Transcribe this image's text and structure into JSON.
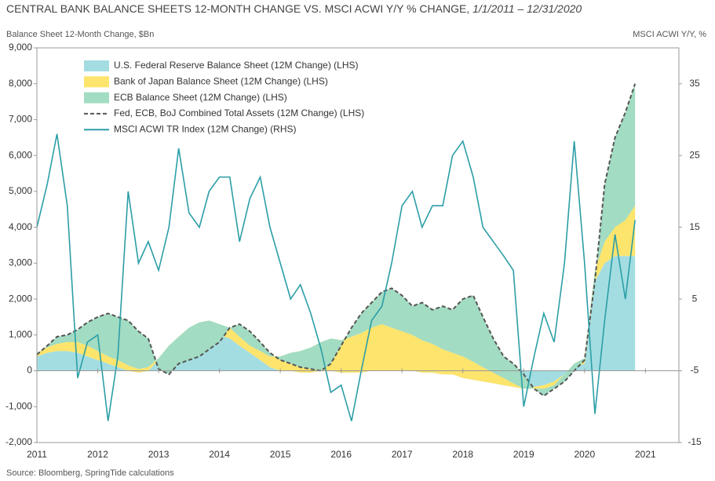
{
  "chart_data": {
    "type": "combo",
    "title": "CENTRAL BANK BALANCE SHEETS 12-MONTH CHANGE VS. MSCI ACWI Y/Y % CHANGE,",
    "title_dates": "1/1/2011 – 12/31/2020",
    "y_label": "Balance Sheet 12-Month Change, $Bn",
    "y2_label": "MSCI ACWI Y/Y, %",
    "source": "Source: Bloomberg, SpringTide calculations",
    "x": [
      2011,
      2011.17,
      2011.33,
      2011.5,
      2011.67,
      2011.83,
      2012,
      2012.17,
      2012.33,
      2012.5,
      2012.67,
      2012.83,
      2013,
      2013.17,
      2013.33,
      2013.5,
      2013.67,
      2013.83,
      2014,
      2014.17,
      2014.33,
      2014.5,
      2014.67,
      2014.83,
      2015,
      2015.17,
      2015.33,
      2015.5,
      2015.67,
      2015.83,
      2016,
      2016.17,
      2016.33,
      2016.5,
      2016.67,
      2016.83,
      2017,
      2017.17,
      2017.33,
      2017.5,
      2017.67,
      2017.83,
      2018,
      2018.17,
      2018.33,
      2018.5,
      2018.67,
      2018.83,
      2019,
      2019.17,
      2019.33,
      2019.5,
      2019.67,
      2019.83,
      2020,
      2020.17,
      2020.33,
      2020.5,
      2020.67,
      2020.83
    ],
    "xlim": [
      2011,
      2021.55
    ],
    "xticks": [
      2011,
      2012,
      2013,
      2014,
      2015,
      2016,
      2017,
      2018,
      2019,
      2020,
      2021
    ],
    "ylim": [
      -2000,
      9000
    ],
    "yticks": [
      {
        "value": -2000,
        "label": "-2,000"
      },
      {
        "value": -1000,
        "label": "-1,000"
      },
      0,
      {
        "value": 1000,
        "label": "1,000"
      },
      {
        "value": 2000,
        "label": "2,000"
      },
      {
        "value": 3000,
        "label": "3,000"
      },
      {
        "value": 4000,
        "label": "4,000"
      },
      {
        "value": 5000,
        "label": "5,000"
      },
      {
        "value": 6000,
        "label": "6,000"
      },
      {
        "value": 7000,
        "label": "7,000"
      },
      {
        "value": 8000,
        "label": "8,000"
      },
      {
        "value": 9000,
        "label": "9,000"
      }
    ],
    "y2lim": [
      -15,
      40
    ],
    "y2ticks": [
      -15,
      -5,
      5,
      15,
      25,
      35
    ],
    "legend": "upper left",
    "series": [
      {
        "name": "U.S. Federal Reserve Balance Sheet (12M Change) (LHS)",
        "kind": "area",
        "color": "#a3dde2",
        "values": [
          400,
          500,
          550,
          550,
          500,
          400,
          300,
          200,
          100,
          0,
          -50,
          0,
          300,
          600,
          800,
          1000,
          1100,
          1100,
          1000,
          900,
          700,
          500,
          300,
          100,
          0,
          0,
          -50,
          -50,
          0,
          0,
          -50,
          -50,
          -50,
          0,
          0,
          0,
          0,
          0,
          -50,
          -50,
          -100,
          -100,
          -200,
          -250,
          -300,
          -350,
          -400,
          -450,
          -500,
          -450,
          -400,
          -300,
          -100,
          100,
          200,
          2500,
          3000,
          3200,
          3200,
          3200
        ]
      },
      {
        "name": "Bank of Japan Balance Sheet (12M Change) (LHS)",
        "kind": "area",
        "color": "#fde46c",
        "values": [
          100,
          150,
          200,
          250,
          300,
          300,
          250,
          200,
          200,
          150,
          100,
          100,
          50,
          100,
          150,
          200,
          250,
          300,
          300,
          300,
          250,
          200,
          250,
          300,
          400,
          500,
          600,
          700,
          800,
          900,
          900,
          1000,
          1100,
          1200,
          1300,
          1200,
          1100,
          1000,
          900,
          800,
          700,
          600,
          600,
          500,
          400,
          300,
          200,
          100,
          0,
          -50,
          -100,
          -100,
          0,
          100,
          150,
          300,
          600,
          800,
          1000,
          1400
        ]
      },
      {
        "name": "ECB Balance Sheet (12M Change) (LHS)",
        "kind": "area",
        "color": "#a2dcc2",
        "values": [
          -50,
          50,
          200,
          200,
          350,
          650,
          950,
          1200,
          1200,
          1250,
          1050,
          800,
          -300,
          -800,
          -750,
          -900,
          -950,
          -800,
          -500,
          0,
          350,
          400,
          250,
          100,
          -100,
          -300,
          -450,
          -600,
          -800,
          -700,
          -150,
          250,
          550,
          700,
          900,
          1100,
          1000,
          800,
          1050,
          950,
          1200,
          1200,
          1600,
          1850,
          1400,
          950,
          600,
          550,
          400,
          0,
          -200,
          -100,
          -200,
          -200,
          -50,
          -300,
          1600,
          2500,
          3000,
          3400
        ]
      },
      {
        "name": "Fed, ECB, BoJ Combined Total Assets (12M Change) (LHS)",
        "kind": "line",
        "dashed": true,
        "color": "#555555",
        "values": [
          450,
          700,
          950,
          1000,
          1150,
          1350,
          1500,
          1600,
          1500,
          1400,
          1100,
          900,
          50,
          -100,
          200,
          300,
          400,
          600,
          800,
          1200,
          1300,
          1100,
          800,
          500,
          300,
          200,
          100,
          50,
          0,
          200,
          700,
          1200,
          1600,
          1900,
          2200,
          2300,
          2100,
          1800,
          1900,
          1700,
          1800,
          1700,
          2000,
          2100,
          1500,
          900,
          400,
          200,
          -100,
          -500,
          -700,
          -500,
          -300,
          0,
          300,
          2500,
          5200,
          6500,
          7200,
          8000
        ]
      },
      {
        "name": "MSCI ACWI TR Index (12M Change) (RHS)",
        "kind": "line",
        "axis": "y2",
        "color": "#2b9ea6",
        "values": [
          15,
          21,
          28,
          18,
          -6,
          -1,
          0,
          -12,
          -3,
          20,
          10,
          13,
          9,
          15,
          26,
          17,
          15,
          20,
          22,
          22,
          13,
          19,
          22,
          15,
          10,
          5,
          7,
          3,
          -2,
          -8,
          -7,
          -12,
          -5,
          2,
          4,
          10,
          18,
          20,
          15,
          18,
          18,
          25,
          27,
          22,
          15,
          13,
          11,
          9,
          -10,
          -3,
          3,
          -1,
          10,
          27,
          10,
          -11,
          2,
          14,
          5,
          16
        ]
      }
    ]
  }
}
